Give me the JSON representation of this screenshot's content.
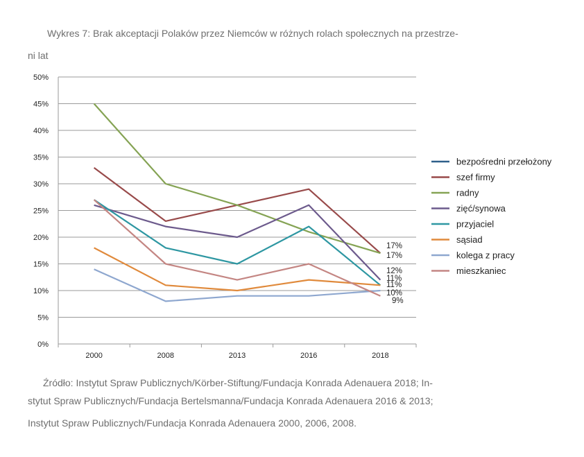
{
  "caption": {
    "title_line1": "Wykres 7: Brak akceptacji Polaków przez Niemców w różnych rolach społecznych na przestrze-",
    "title_line2": "ni lat",
    "source_line1": "Źródło: Instytut Spraw Publicznych/Körber-Stiftung/Fundacja Konrada Adenauera 2018; In-",
    "source_line2": "stytut Spraw Publicznych/Fundacja Bertelsmanna/Fundacja Konrada Adenauera 2016 & 2013;",
    "source_line3": "Instytut Spraw Publicznych/Fundacja Konrada Adenauera 2000, 2006, 2008."
  },
  "chart_data": {
    "type": "line",
    "categories": [
      "2000",
      "2008",
      "2013",
      "2016",
      "2018"
    ],
    "ylim": [
      0,
      50
    ],
    "yticks": [
      0,
      5,
      10,
      15,
      20,
      25,
      30,
      35,
      40,
      45,
      50
    ],
    "ytick_labels": [
      "0%",
      "5%",
      "10%",
      "15%",
      "20%",
      "25%",
      "30%",
      "35%",
      "40%",
      "45%",
      "50%"
    ],
    "grid": true,
    "legend_position": "right",
    "series": [
      {
        "name": "bezpośredni przełożony",
        "color": "#2e5f8a",
        "values": [
          null,
          null,
          null,
          null,
          null
        ]
      },
      {
        "name": "szef firmy",
        "color": "#984a4a",
        "values": [
          33,
          23,
          26,
          29,
          17
        ]
      },
      {
        "name": "radny",
        "color": "#85a354",
        "values": [
          45,
          30,
          26,
          21,
          17
        ]
      },
      {
        "name": "zięć/synowa",
        "color": "#6c5a8c",
        "values": [
          26,
          22,
          20,
          26,
          12
        ]
      },
      {
        "name": "przyjaciel",
        "color": "#2e97a2",
        "values": [
          27,
          18,
          15,
          22,
          11
        ]
      },
      {
        "name": "sąsiad",
        "color": "#e08a3c",
        "values": [
          18,
          11,
          10,
          12,
          11
        ]
      },
      {
        "name": "kolega z pracy",
        "color": "#8ea7cf",
        "values": [
          14,
          8,
          9,
          9,
          10
        ]
      },
      {
        "name": "mieszkaniec",
        "color": "#c48683",
        "values": [
          27,
          15,
          12,
          15,
          9
        ]
      }
    ],
    "end_labels": [
      "17%",
      "17%",
      "12%",
      "11%",
      "11%",
      "10%",
      "9%"
    ]
  }
}
